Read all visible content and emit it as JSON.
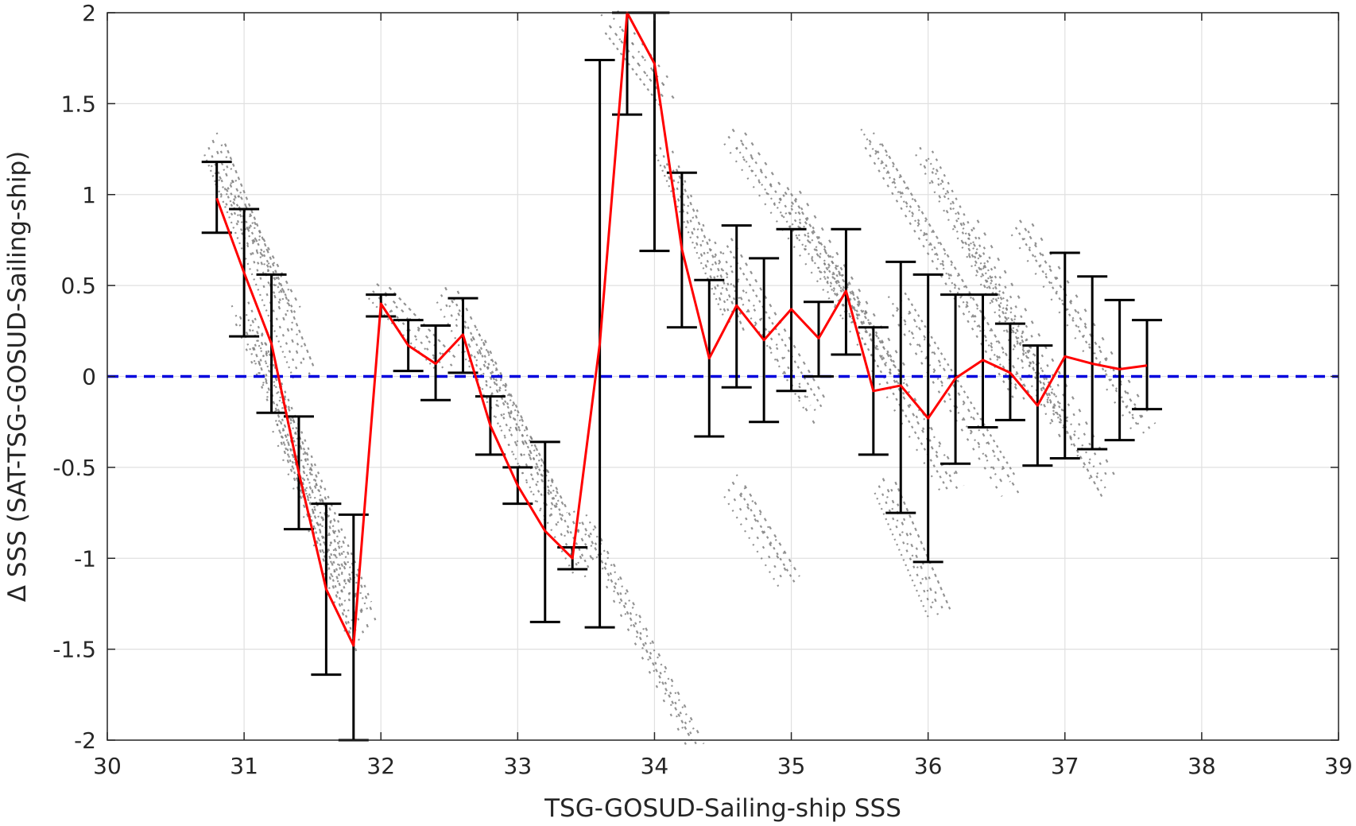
{
  "chart_data": {
    "type": "line",
    "title": "",
    "xlabel": "TSG-GOSUD-Sailing-ship SSS",
    "ylabel": "Δ SSS (SAT-TSG-GOSUD-Sailing-ship)",
    "xlim": [
      30,
      39
    ],
    "ylim": [
      -2,
      2
    ],
    "xticks": [
      30,
      31,
      32,
      33,
      34,
      35,
      36,
      37,
      38,
      39
    ],
    "xtick_labels": [
      "30",
      "31",
      "32",
      "33",
      "34",
      "35",
      "36",
      "37",
      "38",
      "39"
    ],
    "yticks": [
      -2,
      -1.5,
      -1,
      -0.5,
      0,
      0.5,
      1,
      1.5,
      2
    ],
    "ytick_labels": [
      "-2",
      "-1.5",
      "-1",
      "-0.5",
      "0",
      "0.5",
      "1",
      "1.5",
      "2"
    ],
    "grid": true,
    "reference_line": {
      "y": 0,
      "color": "#0000dd",
      "style": "dashed"
    },
    "colors": {
      "mean_line": "#ff0000",
      "error_bars": "#000000",
      "scatter": "#7f7f7f",
      "grid": "#e0e0e0",
      "axes": "#262626"
    },
    "series": [
      {
        "type": "errorbar",
        "x": [
          30.8,
          31.0,
          31.2,
          31.4,
          31.6,
          31.8,
          32.0,
          32.2,
          32.4,
          32.6,
          32.8,
          33.0,
          33.2,
          33.4,
          33.6,
          33.8,
          34.0,
          34.2,
          34.4,
          34.6,
          34.8,
          35.0,
          35.2,
          35.4,
          35.6,
          35.8,
          36.0,
          36.2,
          36.4,
          36.6,
          36.8,
          37.0,
          37.2,
          37.4,
          37.6
        ],
        "mean": [
          0.98,
          0.57,
          0.18,
          -0.53,
          -1.17,
          -1.48,
          0.4,
          0.17,
          0.07,
          0.23,
          -0.27,
          -0.6,
          -0.85,
          -1.0,
          0.18,
          2.0,
          1.72,
          0.7,
          0.1,
          0.39,
          0.2,
          0.37,
          0.21,
          0.47,
          -0.08,
          -0.05,
          -0.23,
          -0.01,
          0.09,
          0.02,
          -0.16,
          0.11,
          0.07,
          0.04,
          0.06
        ],
        "upper": [
          1.18,
          0.92,
          0.56,
          -0.22,
          -0.7,
          -0.76,
          0.45,
          0.31,
          0.28,
          0.43,
          -0.11,
          -0.5,
          -0.36,
          -0.94,
          1.74,
          2.0,
          2.0,
          1.12,
          0.53,
          0.83,
          0.65,
          0.81,
          0.41,
          0.81,
          0.27,
          0.63,
          0.56,
          0.45,
          0.45,
          0.29,
          0.17,
          0.68,
          0.55,
          0.42,
          0.31
        ],
        "lower": [
          0.79,
          0.22,
          -0.2,
          -0.84,
          -1.64,
          -2.0,
          0.33,
          0.03,
          -0.13,
          0.02,
          -0.43,
          -0.7,
          -1.35,
          -1.06,
          -1.38,
          1.44,
          0.69,
          0.27,
          -0.33,
          -0.06,
          -0.25,
          -0.08,
          0.0,
          0.12,
          -0.43,
          -0.75,
          -1.02,
          -0.48,
          -0.28,
          -0.24,
          -0.49,
          -0.45,
          -0.4,
          -0.35,
          -0.18
        ]
      }
    ],
    "scatter_clusters": [
      {
        "x0": 30.8,
        "y0": 1.28,
        "x1": 31.45,
        "y1": 0.05
      },
      {
        "x0": 30.85,
        "y0": 1.1,
        "x1": 31.35,
        "y1": 0.4
      },
      {
        "x0": 31.0,
        "y0": 0.35,
        "x1": 31.9,
        "y1": -1.3
      },
      {
        "x0": 31.1,
        "y0": 0.2,
        "x1": 31.75,
        "y1": -1.15
      },
      {
        "x0": 31.3,
        "y0": -0.3,
        "x1": 31.85,
        "y1": -1.45
      },
      {
        "x0": 32.0,
        "y0": 0.45,
        "x1": 32.5,
        "y1": 0.05
      },
      {
        "x0": 32.5,
        "y0": 0.45,
        "x1": 33.5,
        "y1": -1.05
      },
      {
        "x0": 32.7,
        "y0": 0.2,
        "x1": 33.3,
        "y1": -0.75
      },
      {
        "x0": 33.5,
        "y0": -0.8,
        "x1": 34.3,
        "y1": -2.0
      },
      {
        "x0": 33.7,
        "y0": 1.95,
        "x1": 34.1,
        "y1": 1.55
      },
      {
        "x0": 34.1,
        "y0": 1.2,
        "x1": 34.6,
        "y1": 0.3
      },
      {
        "x0": 34.5,
        "y0": 0.7,
        "x1": 35.2,
        "y1": -0.2
      },
      {
        "x0": 34.6,
        "y0": 1.3,
        "x1": 35.5,
        "y1": 0.3
      },
      {
        "x0": 35.0,
        "y0": 1.0,
        "x1": 35.8,
        "y1": 0.0
      },
      {
        "x0": 35.3,
        "y0": 0.6,
        "x1": 36.2,
        "y1": -0.6
      },
      {
        "x0": 35.6,
        "y0": 1.3,
        "x1": 36.7,
        "y1": -0.1
      },
      {
        "x0": 35.8,
        "y0": 0.4,
        "x1": 36.6,
        "y1": -0.6
      },
      {
        "x0": 36.0,
        "y0": 1.2,
        "x1": 37.0,
        "y1": -0.3
      },
      {
        "x0": 36.3,
        "y0": 0.8,
        "x1": 37.3,
        "y1": -0.6
      },
      {
        "x0": 36.7,
        "y0": 0.8,
        "x1": 37.6,
        "y1": -0.3
      },
      {
        "x0": 35.7,
        "y0": -0.6,
        "x1": 36.1,
        "y1": -1.3
      },
      {
        "x0": 34.6,
        "y0": -0.6,
        "x1": 35.0,
        "y1": -1.1
      }
    ]
  }
}
